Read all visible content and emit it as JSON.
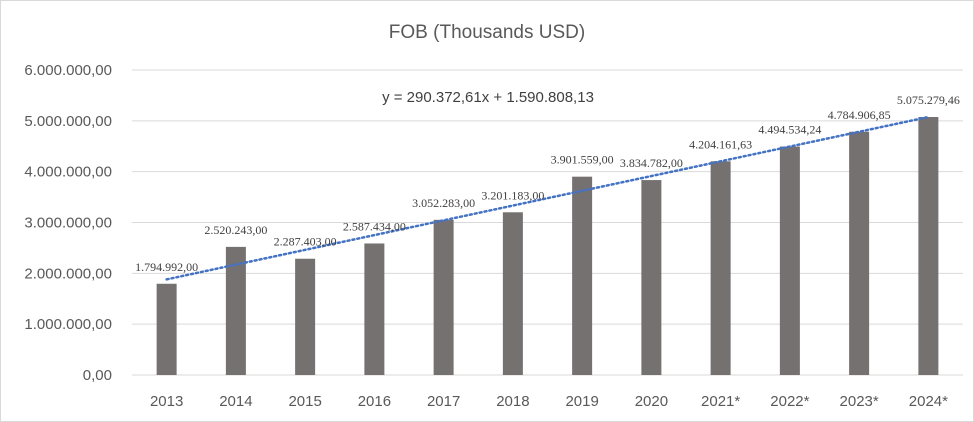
{
  "chart_data": {
    "type": "bar",
    "title": "FOB (Thousands USD)",
    "xlabel": "",
    "ylabel": "",
    "ylim": [
      0,
      6000000
    ],
    "yticks": [
      0,
      1000000,
      2000000,
      3000000,
      4000000,
      5000000,
      6000000
    ],
    "ytick_labels": [
      "0,00",
      "1.000.000,00",
      "2.000.000,00",
      "3.000.000,00",
      "4.000.000,00",
      "5.000.000,00",
      "6.000.000,00"
    ],
    "categories": [
      "2013",
      "2014",
      "2015",
      "2016",
      "2017",
      "2018",
      "2019",
      "2020",
      "2021*",
      "2022*",
      "2023*",
      "2024*"
    ],
    "values": [
      1794992.0,
      2520243.0,
      2287403.0,
      2587434.0,
      3052283.0,
      3201183.0,
      3901559.0,
      3834782.0,
      4204161.63,
      4494534.24,
      4784906.85,
      5075279.46
    ],
    "data_labels": [
      "1.794.992,00",
      "2.520.243,00",
      "2.287.403,00",
      "2.587.434,00",
      "3.052.283,00",
      "3.201.183,00",
      "3.901.559,00",
      "3.834.782,00",
      "4.204.161,63",
      "4.494.534,24",
      "4.784.906,85",
      "5.075.279,46"
    ],
    "trendline": {
      "type": "linear",
      "slope": 290372.61,
      "intercept": 1590808.13,
      "equation": "y = 290.372,61x + 1.590.808,13"
    },
    "grid": true,
    "legend": "none",
    "colors": {
      "bar": "#767171",
      "trendline": "#4472c4",
      "grid": "#d9d9d9",
      "text": "#595959"
    }
  }
}
